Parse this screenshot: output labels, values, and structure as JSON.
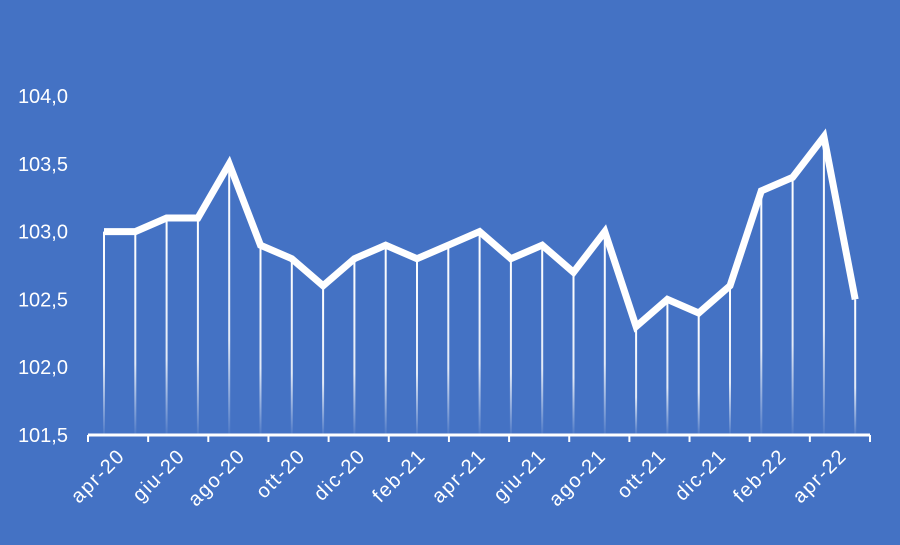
{
  "colors": {
    "background": "#4472C4",
    "line": "#FFFFFF",
    "axis": "#FFFFFF",
    "text": "#FFFFFF"
  },
  "chart_data": {
    "type": "line",
    "title": "",
    "xlabel": "",
    "ylabel": "",
    "ylim": [
      101.5,
      104.0
    ],
    "yticks": [
      "101,5",
      "102,0",
      "102,5",
      "103,0",
      "103,5",
      "104,0"
    ],
    "ytick_values": [
      101.5,
      102.0,
      102.5,
      103.0,
      103.5,
      104.0
    ],
    "xticks": [
      "apr-20",
      "giu-20",
      "ago-20",
      "ott-20",
      "dic-20",
      "feb-21",
      "apr-21",
      "giu-21",
      "ago-21",
      "ott-21",
      "dic-21",
      "feb-22",
      "apr-22"
    ],
    "grid": false,
    "legend": "none",
    "drop_lines": true,
    "categories": [
      "apr-20",
      "mag-20",
      "giu-20",
      "lug-20",
      "ago-20",
      "set-20",
      "ott-20",
      "nov-20",
      "dic-20",
      "gen-21",
      "feb-21",
      "mar-21",
      "apr-21",
      "mag-21",
      "giu-21",
      "lug-21",
      "ago-21",
      "set-21",
      "ott-21",
      "nov-21",
      "dic-21",
      "gen-22",
      "feb-22",
      "mar-22",
      "apr-22"
    ],
    "values": [
      103.0,
      103.0,
      103.1,
      103.1,
      103.5,
      102.9,
      102.8,
      102.6,
      102.8,
      102.9,
      102.8,
      102.9,
      103.0,
      102.8,
      102.9,
      102.7,
      103.0,
      102.3,
      102.5,
      102.4,
      102.6,
      103.3,
      103.4,
      103.7,
      102.5
    ]
  }
}
